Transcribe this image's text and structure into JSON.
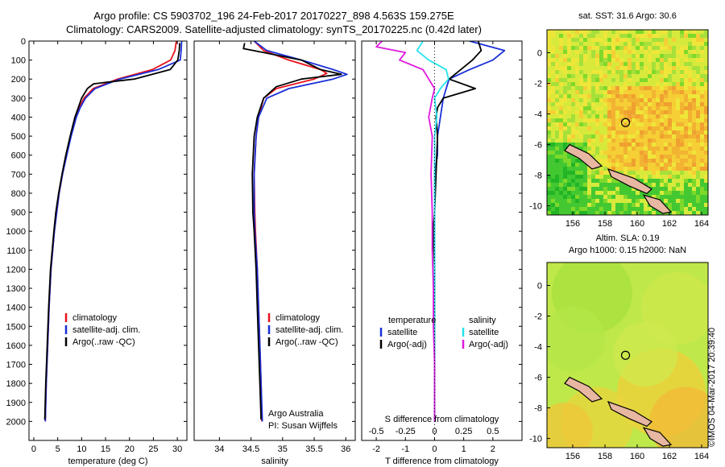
{
  "header": {
    "line1": "Argo profile: CS 5903702_196 24-Feb-2017 20170227_898 4.563S 159.275E",
    "line2": "Climatology: CARS2009. Satellite-adjusted climatology: synTS_20170225.nc (0.42d later)"
  },
  "depth_ticks": [
    "0",
    "100",
    "200",
    "300",
    "400",
    "500",
    "600",
    "700",
    "800",
    "900",
    "1000",
    "1100",
    "1200",
    "1300",
    "1400",
    "1500",
    "1600",
    "1700",
    "1800",
    "1900",
    "2000"
  ],
  "colors": {
    "red": "#e8141c",
    "blue": "#1a2fd8",
    "black": "#000000",
    "cyan": "#27e3ee",
    "magenta": "#e01adf"
  },
  "chart_data": [
    {
      "type": "line",
      "name": "temperature",
      "xlabel": "temperature (deg C)",
      "ylabel": "depth",
      "xlim": [
        -1,
        32
      ],
      "ylim": [
        2100,
        0
      ],
      "xticks": [
        "0",
        "5",
        "10",
        "15",
        "20",
        "25",
        "30"
      ],
      "legend": {
        "items": [
          "climatology",
          "satellite-adj. clim.",
          "Argo(..raw -QC)"
        ]
      },
      "series": [
        {
          "name": "climatology",
          "color": "red",
          "depth": [
            0,
            50,
            100,
            150,
            200,
            250,
            300,
            350,
            400,
            500,
            600,
            700,
            800,
            900,
            1000,
            1200,
            1400,
            1600,
            1800,
            2000
          ],
          "values": [
            29.8,
            29.5,
            28.6,
            24.8,
            17.5,
            12.4,
            10.5,
            9.5,
            8.8,
            7.7,
            6.8,
            6.0,
            5.3,
            4.8,
            4.3,
            3.6,
            3.2,
            2.9,
            2.6,
            2.4
          ]
        },
        {
          "name": "satellite-adj. clim.",
          "color": "blue",
          "depth": [
            0,
            50,
            100,
            150,
            200,
            250,
            300,
            350,
            400,
            500,
            600,
            700,
            800,
            900,
            1000,
            1200,
            1400,
            1600,
            1800,
            2000
          ],
          "values": [
            30.9,
            30.8,
            30.6,
            26.0,
            18.0,
            12.8,
            10.8,
            9.7,
            8.9,
            7.8,
            6.9,
            6.0,
            5.3,
            4.8,
            4.3,
            3.6,
            3.2,
            2.9,
            2.6,
            2.4
          ]
        },
        {
          "name": "Argo(..raw -QC)",
          "color": "black",
          "depth": [
            10,
            50,
            100,
            150,
            200,
            225,
            250,
            300,
            350,
            400,
            500,
            600,
            700,
            800,
            900,
            1000,
            1200,
            1400,
            1600,
            1800,
            1990
          ],
          "values": [
            30.5,
            30.4,
            30.1,
            28.5,
            21.0,
            12.5,
            11.2,
            10.0,
            9.3,
            8.6,
            7.6,
            6.7,
            5.9,
            5.2,
            4.6,
            4.2,
            3.5,
            3.1,
            2.8,
            2.5,
            2.3
          ]
        }
      ]
    },
    {
      "type": "line",
      "name": "salinity",
      "xlabel": "salinity",
      "ylabel": "depth",
      "xlim": [
        33.6,
        36.15
      ],
      "ylim": [
        2100,
        0
      ],
      "xticks": [
        "34",
        "34.5",
        "35",
        "35.5",
        "36"
      ],
      "legend": {
        "items": [
          "climatology",
          "satellite-adj. clim.",
          "Argo(..raw -QC)"
        ]
      },
      "annotation": [
        "Argo Australia",
        "PI: Susan Wijffels"
      ],
      "series": [
        {
          "name": "climatology",
          "color": "red",
          "depth": [
            0,
            50,
            100,
            150,
            170,
            200,
            250,
            300,
            400,
            500,
            700,
            900,
            1000,
            1200,
            1400,
            1600,
            1800,
            2000
          ],
          "values": [
            34.55,
            34.7,
            35.1,
            35.6,
            35.7,
            35.5,
            34.9,
            34.7,
            34.62,
            34.58,
            34.55,
            34.56,
            34.57,
            34.6,
            34.62,
            34.64,
            34.66,
            34.67
          ]
        },
        {
          "name": "satellite-adj. clim.",
          "color": "blue",
          "depth": [
            0,
            50,
            100,
            150,
            175,
            200,
            250,
            300,
            400,
            500,
            700,
            900,
            1000,
            1200,
            1400,
            1600,
            1800,
            2000
          ],
          "values": [
            34.55,
            34.75,
            35.3,
            35.8,
            36.02,
            35.8,
            35.1,
            34.75,
            34.62,
            34.58,
            34.55,
            34.55,
            34.56,
            34.6,
            34.62,
            34.64,
            34.66,
            34.68
          ]
        },
        {
          "name": "Argo(..raw -QC)",
          "color": "black",
          "depth": [
            10,
            40,
            60,
            100,
            150,
            175,
            200,
            240,
            300,
            400,
            500,
            700,
            900,
            1000,
            1200,
            1400,
            1600,
            1800,
            1990
          ],
          "values": [
            34.4,
            34.38,
            34.7,
            35.3,
            35.6,
            35.93,
            35.3,
            34.9,
            34.7,
            34.6,
            34.55,
            34.52,
            34.53,
            34.55,
            34.58,
            34.6,
            34.62,
            34.64,
            34.66
          ]
        }
      ]
    },
    {
      "type": "line",
      "name": "difference",
      "xlabel": "T difference from climatology",
      "top_label": "S difference from climatology",
      "ylabel": "depth",
      "xlim": [
        -2.5,
        3.0
      ],
      "ylim": [
        2100,
        0
      ],
      "xticks": [
        "-2",
        "-1",
        "0",
        "1",
        "2"
      ],
      "top_ticks": [
        "-0.5",
        "-0.25",
        "0",
        "0.25",
        "0.5"
      ],
      "legend": {
        "left_header": "temperature",
        "right_header": "salinity",
        "left_items": [
          "satellite",
          "Argo(-adj)"
        ],
        "right_items": [
          "satellite",
          "Argo(-adj)"
        ]
      },
      "series": [
        {
          "name": "T satellite",
          "color": "blue",
          "depth": [
            0,
            50,
            100,
            150,
            200,
            250,
            300,
            400,
            500,
            600,
            700,
            800,
            900,
            1000,
            1200,
            1400,
            1600,
            1800,
            2000
          ],
          "values": [
            1.2,
            2.4,
            2.0,
            1.2,
            0.5,
            0.4,
            0.3,
            0.2,
            0.1,
            0.1,
            0.0,
            0.0,
            0.0,
            0.0,
            0.0,
            0.0,
            0.0,
            0.0,
            0.0
          ]
        },
        {
          "name": "T Argo(-adj)",
          "color": "black",
          "depth": [
            0,
            50,
            100,
            150,
            200,
            250,
            300,
            350,
            400,
            500,
            700,
            900,
            1000,
            1200,
            1400,
            1600,
            1800,
            2000
          ],
          "values": [
            1.5,
            1.6,
            1.3,
            0.9,
            0.5,
            1.4,
            0.3,
            0.1,
            0.05,
            0.1,
            0.05,
            0.0,
            -0.05,
            0.0,
            0.0,
            0.0,
            0.0,
            0.0
          ]
        },
        {
          "name": "S satellite",
          "color": "cyan",
          "depth": [
            0,
            50,
            100,
            150,
            200,
            250,
            300,
            400,
            500,
            700,
            900,
            1100,
            1300,
            1500,
            1700,
            1900,
            2000
          ],
          "values": [
            -0.1,
            -0.15,
            -0.05,
            0.1,
            0.12,
            0.05,
            0.0,
            0.02,
            0.0,
            0.0,
            0.0,
            0.0,
            0.0,
            0.0,
            0.0,
            0.0,
            0.0
          ]
        },
        {
          "name": "S Argo(-adj)",
          "color": "magenta",
          "depth": [
            0,
            30,
            60,
            100,
            150,
            200,
            250,
            300,
            400,
            500,
            700,
            900,
            1100,
            1300,
            1500,
            1700,
            1900,
            2000
          ],
          "values": [
            -0.45,
            -0.5,
            -0.25,
            -0.3,
            -0.1,
            -0.05,
            0.0,
            -0.02,
            -0.05,
            -0.02,
            -0.03,
            -0.02,
            -0.02,
            -0.01,
            -0.01,
            0.0,
            0.0,
            0.0
          ]
        }
      ]
    },
    {
      "type": "heatmap",
      "name": "sst_map",
      "title": "sat. SST: 31.6 Argo: 30.6",
      "xlim": [
        154.4,
        164.4
      ],
      "ylim": [
        -10.6,
        1.5
      ],
      "xticks": [
        "156",
        "158",
        "160",
        "162",
        "164"
      ],
      "yticks": [
        "0",
        "-2",
        "-4",
        "-6",
        "-8",
        "-10"
      ],
      "marker": {
        "lon": 159.275,
        "lat": -4.563
      }
    },
    {
      "type": "heatmap",
      "name": "sla_map",
      "title_lines": [
        "Altim. SLA: 0.19",
        "Argo h1000: 0.15 h2000: NaN"
      ],
      "xlim": [
        154.4,
        164.4
      ],
      "ylim": [
        -10.6,
        1.5
      ],
      "xticks": [
        "156",
        "158",
        "160",
        "162",
        "164"
      ],
      "yticks": [
        "0",
        "-2",
        "-4",
        "-6",
        "-8",
        "-10"
      ],
      "marker": {
        "lon": 159.275,
        "lat": -4.563
      }
    }
  ],
  "footer": {
    "credit": "©IMOS 04-Mar-2017 20:39:40"
  }
}
